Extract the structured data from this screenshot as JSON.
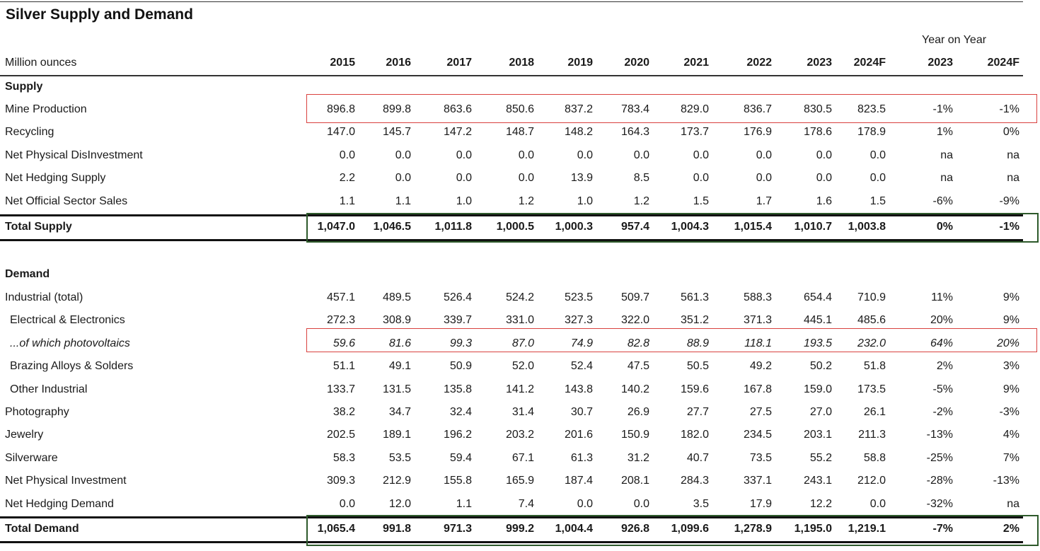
{
  "title": "Silver Supply and Demand",
  "header": {
    "unit_label": "Million ounces",
    "yoy_label": "Year on Year",
    "years": [
      "2015",
      "2016",
      "2017",
      "2018",
      "2019",
      "2020",
      "2021",
      "2022",
      "2023",
      "2024F"
    ],
    "yoy_years": [
      "2023",
      "2024F"
    ]
  },
  "supply": {
    "section_label": "Supply",
    "rows": [
      {
        "label": "Mine Production",
        "values": [
          "896.8",
          "899.8",
          "863.6",
          "850.6",
          "837.2",
          "783.4",
          "829.0",
          "836.7",
          "830.5",
          "823.5"
        ],
        "yoy": [
          "-1%",
          "-1%"
        ],
        "highlight": "red"
      },
      {
        "label": "Recycling",
        "values": [
          "147.0",
          "145.7",
          "147.2",
          "148.7",
          "148.2",
          "164.3",
          "173.7",
          "176.9",
          "178.6",
          "178.9"
        ],
        "yoy": [
          "1%",
          "0%"
        ]
      },
      {
        "label": "Net Physical DisInvestment",
        "values": [
          "0.0",
          "0.0",
          "0.0",
          "0.0",
          "0.0",
          "0.0",
          "0.0",
          "0.0",
          "0.0",
          "0.0"
        ],
        "yoy": [
          "na",
          "na"
        ]
      },
      {
        "label": "Net Hedging Supply",
        "values": [
          "2.2",
          "0.0",
          "0.0",
          "0.0",
          "13.9",
          "8.5",
          "0.0",
          "0.0",
          "0.0",
          "0.0"
        ],
        "yoy": [
          "na",
          "na"
        ]
      },
      {
        "label": "Net Official Sector Sales",
        "values": [
          "1.1",
          "1.1",
          "1.0",
          "1.2",
          "1.0",
          "1.2",
          "1.5",
          "1.7",
          "1.6",
          "1.5"
        ],
        "yoy": [
          "-6%",
          "-9%"
        ]
      }
    ],
    "total": {
      "label": "Total Supply",
      "values": [
        "1,047.0",
        "1,046.5",
        "1,011.8",
        "1,000.5",
        "1,000.3",
        "957.4",
        "1,004.3",
        "1,015.4",
        "1,010.7",
        "1,003.8"
      ],
      "yoy": [
        "0%",
        "-1%"
      ]
    }
  },
  "demand": {
    "section_label": "Demand",
    "rows": [
      {
        "label": "Industrial (total)",
        "values": [
          "457.1",
          "489.5",
          "526.4",
          "524.2",
          "523.5",
          "509.7",
          "561.3",
          "588.3",
          "654.4",
          "710.9"
        ],
        "yoy": [
          "11%",
          "9%"
        ]
      },
      {
        "label": "Electrical & Electronics",
        "indent": true,
        "values": [
          "272.3",
          "308.9",
          "339.7",
          "331.0",
          "327.3",
          "322.0",
          "351.2",
          "371.3",
          "445.1",
          "485.6"
        ],
        "yoy": [
          "20%",
          "9%"
        ]
      },
      {
        "label": "...of which photovoltaics",
        "indent": true,
        "italic": true,
        "values": [
          "59.6",
          "81.6",
          "99.3",
          "87.0",
          "74.9",
          "82.8",
          "88.9",
          "118.1",
          "193.5",
          "232.0"
        ],
        "yoy": [
          "64%",
          "20%"
        ],
        "highlight": "red"
      },
      {
        "label": "Brazing Alloys & Solders",
        "indent": true,
        "values": [
          "51.1",
          "49.1",
          "50.9",
          "52.0",
          "52.4",
          "47.5",
          "50.5",
          "49.2",
          "50.2",
          "51.8"
        ],
        "yoy": [
          "2%",
          "3%"
        ]
      },
      {
        "label": "Other Industrial",
        "indent": true,
        "values": [
          "133.7",
          "131.5",
          "135.8",
          "141.2",
          "143.8",
          "140.2",
          "159.6",
          "167.8",
          "159.0",
          "173.5"
        ],
        "yoy": [
          "-5%",
          "9%"
        ]
      },
      {
        "label": "Photography",
        "values": [
          "38.2",
          "34.7",
          "32.4",
          "31.4",
          "30.7",
          "26.9",
          "27.7",
          "27.5",
          "27.0",
          "26.1"
        ],
        "yoy": [
          "-2%",
          "-3%"
        ]
      },
      {
        "label": "Jewelry",
        "values": [
          "202.5",
          "189.1",
          "196.2",
          "203.2",
          "201.6",
          "150.9",
          "182.0",
          "234.5",
          "203.1",
          "211.3"
        ],
        "yoy": [
          "-13%",
          "4%"
        ]
      },
      {
        "label": "Silverware",
        "values": [
          "58.3",
          "53.5",
          "59.4",
          "67.1",
          "61.3",
          "31.2",
          "40.7",
          "73.5",
          "55.2",
          "58.8"
        ],
        "yoy": [
          "-25%",
          "7%"
        ]
      },
      {
        "label": "Net Physical Investment",
        "values": [
          "309.3",
          "212.9",
          "155.8",
          "165.9",
          "187.4",
          "208.1",
          "284.3",
          "337.1",
          "243.1",
          "212.0"
        ],
        "yoy": [
          "-28%",
          "-13%"
        ]
      },
      {
        "label": "Net Hedging Demand",
        "values": [
          "0.0",
          "12.0",
          "1.1",
          "7.4",
          "0.0",
          "0.0",
          "3.5",
          "17.9",
          "12.2",
          "0.0"
        ],
        "yoy": [
          "-32%",
          "na"
        ]
      }
    ],
    "total": {
      "label": "Total Demand",
      "values": [
        "1,065.4",
        "991.8",
        "971.3",
        "999.2",
        "1,004.4",
        "926.8",
        "1,099.6",
        "1,278.9",
        "1,195.0",
        "1,219.1"
      ],
      "yoy": [
        "-7%",
        "2%"
      ]
    }
  },
  "chart_data": {
    "type": "table",
    "title": "Silver Supply and Demand",
    "unit": "Million ounces",
    "columns": [
      "2015",
      "2016",
      "2017",
      "2018",
      "2019",
      "2020",
      "2021",
      "2022",
      "2023",
      "2024F"
    ],
    "yoy_columns": [
      "2023",
      "2024F"
    ]
  },
  "colors": {
    "highlight_red": "#d9413f",
    "highlight_green": "#2e5a2b"
  }
}
